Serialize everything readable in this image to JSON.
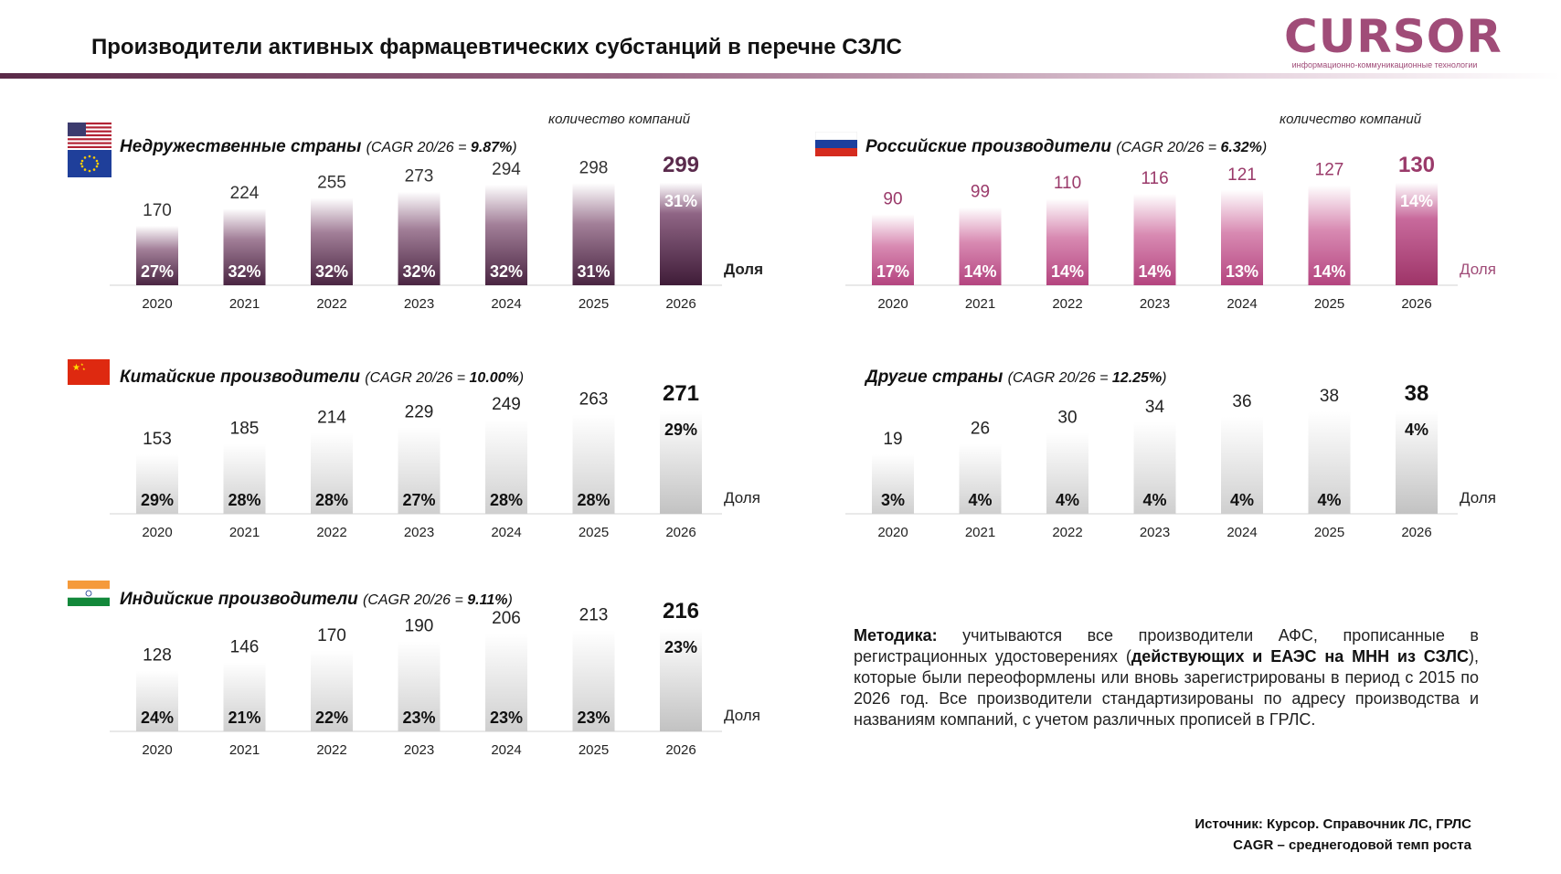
{
  "title": "Производители активных фармацевтических субстанций в перечне СЗЛС",
  "logo": {
    "word": "CURSOR",
    "sub": "информационно-коммуникационные технологии"
  },
  "units_label": "количество компаний",
  "share_label": "Доля",
  "chart_data": [
    {
      "type": "bar",
      "id": "unfriendly",
      "title": "Недружественные страны",
      "cagr_prefix": "(CAGR 20/26 = ",
      "cagr": "9.87%",
      "cagr_suffix": ")",
      "categories": [
        "2020",
        "2021",
        "2022",
        "2023",
        "2024",
        "2025",
        "2026"
      ],
      "values": [
        170,
        224,
        255,
        273,
        294,
        298,
        299
      ],
      "shares": [
        "27%",
        "32%",
        "32%",
        "32%",
        "32%",
        "31%",
        "31%"
      ],
      "style": "dark-purple",
      "flags": [
        "usa",
        "eu"
      ]
    },
    {
      "type": "bar",
      "id": "russia",
      "title": "Российские производители",
      "cagr_prefix": "(CAGR 20/26 = ",
      "cagr": "6.32%",
      "cagr_suffix": ")",
      "categories": [
        "2020",
        "2021",
        "2022",
        "2023",
        "2024",
        "2025",
        "2026"
      ],
      "values": [
        90,
        99,
        110,
        116,
        121,
        127,
        130
      ],
      "shares": [
        "17%",
        "14%",
        "14%",
        "14%",
        "13%",
        "14%",
        "14%"
      ],
      "style": "pink",
      "flags": [
        "russia"
      ]
    },
    {
      "type": "bar",
      "id": "china",
      "title": "Китайские производители",
      "cagr_prefix": "(CAGR 20/26 = ",
      "cagr": "10.00%",
      "cagr_suffix": ")",
      "categories": [
        "2020",
        "2021",
        "2022",
        "2023",
        "2024",
        "2025",
        "2026"
      ],
      "values": [
        153,
        185,
        214,
        229,
        249,
        263,
        271
      ],
      "shares": [
        "29%",
        "28%",
        "28%",
        "27%",
        "28%",
        "28%",
        "29%"
      ],
      "style": "grey",
      "flags": [
        "china"
      ]
    },
    {
      "type": "bar",
      "id": "other",
      "title": "Другие страны",
      "cagr_prefix": "(CAGR 20/26 = ",
      "cagr": "12.25%",
      "cagr_suffix": ")",
      "categories": [
        "2020",
        "2021",
        "2022",
        "2023",
        "2024",
        "2025",
        "2026"
      ],
      "values": [
        19,
        26,
        30,
        34,
        36,
        38,
        38
      ],
      "shares": [
        "3%",
        "4%",
        "4%",
        "4%",
        "4%",
        "4%",
        "4%"
      ],
      "style": "grey",
      "flags": []
    },
    {
      "type": "bar",
      "id": "india",
      "title": "Индийские производители",
      "cagr_prefix": "(CAGR 20/26 = ",
      "cagr": "9.11%",
      "cagr_suffix": ")",
      "categories": [
        "2020",
        "2021",
        "2022",
        "2023",
        "2024",
        "2025",
        "2026"
      ],
      "values": [
        128,
        146,
        170,
        190,
        206,
        213,
        216
      ],
      "shares": [
        "24%",
        "21%",
        "22%",
        "23%",
        "23%",
        "23%",
        "23%"
      ],
      "style": "grey",
      "flags": [
        "india"
      ]
    }
  ],
  "methodology": {
    "label": "Методика:",
    "text1": " учитываются все производители АФС, прописанные в регистрационных удостоверениях (",
    "bold": "действующих и ЕАЭС на МНН из СЗЛС",
    "text2": "), которые были переоформлены или вновь зарегистрированы в период с 2015 по 2026 год. Все производители стандартизированы по адресу производства и названиям компаний, с учетом различных прописей в ГРЛС."
  },
  "source": {
    "line1": "Источник: Курсор. Справочник ЛС, ГРЛС",
    "line2": "CAGR – среднегодовой темп роста"
  }
}
